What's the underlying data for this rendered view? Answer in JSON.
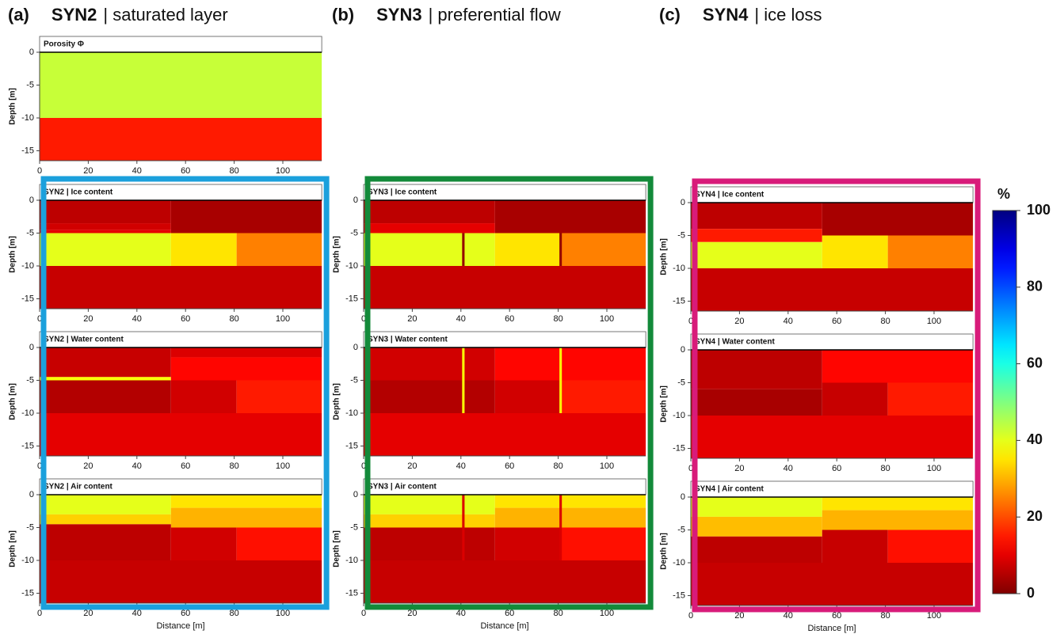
{
  "axes": {
    "xlabel": "Distance [m]",
    "ylabel": "Depth [m]",
    "xlim": [
      0,
      116
    ],
    "ylim": [
      -16.5,
      0
    ],
    "xticks": [
      0,
      20,
      40,
      60,
      80,
      100
    ],
    "yticks": [
      -15,
      -10,
      -5,
      0
    ]
  },
  "colorbar": {
    "title": "%",
    "lim": [
      0,
      100
    ],
    "ticks": [
      0,
      20,
      40,
      60,
      80,
      100
    ]
  },
  "columns": [
    {
      "label": "(a)",
      "name": "SYN2",
      "subtitle": "| saturated layer",
      "frame_color": "#1ba0dc",
      "panels": [
        {
          "title": "Porosity Φ",
          "regions": [
            {
              "x": [
                0,
                116
              ],
              "depth": [
                0,
                -10
              ],
              "value": 43
            },
            {
              "x": [
                0,
                116
              ],
              "depth": [
                -10,
                -16.5
              ],
              "value": 15
            }
          ]
        },
        {
          "title": "SYN2 | Ice content",
          "regions": [
            {
              "x": [
                0,
                54
              ],
              "depth": [
                0,
                -3.5
              ],
              "value": 6
            },
            {
              "x": [
                0,
                54
              ],
              "depth": [
                -3.5,
                -4.5
              ],
              "value": 8
            },
            {
              "x": [
                0,
                54
              ],
              "depth": [
                -4.5,
                -5
              ],
              "value": 10
            },
            {
              "x": [
                54,
                116
              ],
              "depth": [
                0,
                -5
              ],
              "value": 4
            },
            {
              "x": [
                0,
                54
              ],
              "depth": [
                -5,
                -10
              ],
              "value": 40
            },
            {
              "x": [
                54,
                81
              ],
              "depth": [
                -5,
                -10
              ],
              "value": 35
            },
            {
              "x": [
                81,
                116
              ],
              "depth": [
                -5,
                -10
              ],
              "value": 25
            },
            {
              "x": [
                0,
                116
              ],
              "depth": [
                -10,
                -16.5
              ],
              "value": 7
            }
          ]
        },
        {
          "title": "SYN2 | Water content",
          "regions": [
            {
              "x": [
                0,
                54
              ],
              "depth": [
                0,
                -4.5
              ],
              "value": 7
            },
            {
              "x": [
                0,
                54
              ],
              "depth": [
                -4.5,
                -5
              ],
              "value": 38
            },
            {
              "x": [
                0,
                54
              ],
              "depth": [
                -5,
                -10
              ],
              "value": 5
            },
            {
              "x": [
                54,
                116
              ],
              "depth": [
                0,
                -1.5
              ],
              "value": 9
            },
            {
              "x": [
                54,
                116
              ],
              "depth": [
                -1.5,
                -5
              ],
              "value": 13
            },
            {
              "x": [
                54,
                81
              ],
              "depth": [
                -5,
                -10
              ],
              "value": 8
            },
            {
              "x": [
                81,
                116
              ],
              "depth": [
                -5,
                -10
              ],
              "value": 15
            },
            {
              "x": [
                0,
                116
              ],
              "depth": [
                -10,
                -16.5
              ],
              "value": 10
            }
          ]
        },
        {
          "title": "SYN2 | Air content",
          "regions": [
            {
              "x": [
                0,
                54
              ],
              "depth": [
                0,
                -3
              ],
              "value": 40
            },
            {
              "x": [
                0,
                54
              ],
              "depth": [
                -3,
                -4.5
              ],
              "value": 33
            },
            {
              "x": [
                54,
                116
              ],
              "depth": [
                0,
                -2
              ],
              "value": 35
            },
            {
              "x": [
                54,
                116
              ],
              "depth": [
                -2,
                -5
              ],
              "value": 30
            },
            {
              "x": [
                0,
                54
              ],
              "depth": [
                -4.5,
                -10
              ],
              "value": 6
            },
            {
              "x": [
                54,
                81
              ],
              "depth": [
                -5,
                -10
              ],
              "value": 8
            },
            {
              "x": [
                81,
                116
              ],
              "depth": [
                -5,
                -10
              ],
              "value": 14
            },
            {
              "x": [
                0,
                116
              ],
              "depth": [
                -10,
                -16.5
              ],
              "value": 7
            }
          ]
        }
      ]
    },
    {
      "label": "(b)",
      "name": "SYN3",
      "subtitle": "| preferential flow",
      "frame_color": "#138a3a",
      "panels": [
        {
          "title": "SYN3 | Ice content",
          "regions": [
            {
              "x": [
                0,
                54
              ],
              "depth": [
                0,
                -3.5
              ],
              "value": 6
            },
            {
              "x": [
                0,
                54
              ],
              "depth": [
                -3.5,
                -5
              ],
              "value": 10
            },
            {
              "x": [
                54,
                116
              ],
              "depth": [
                0,
                -5
              ],
              "value": 4
            },
            {
              "x": [
                0,
                54
              ],
              "depth": [
                -5,
                -10
              ],
              "value": 40
            },
            {
              "x": [
                54,
                81
              ],
              "depth": [
                -5,
                -10
              ],
              "value": 35
            },
            {
              "x": [
                81,
                116
              ],
              "depth": [
                -5,
                -10
              ],
              "value": 25
            },
            {
              "x": [
                40.5,
                41.5
              ],
              "depth": [
                -5,
                -10
              ],
              "value": 2
            },
            {
              "x": [
                80.5,
                81.5
              ],
              "depth": [
                -5,
                -10
              ],
              "value": 2
            },
            {
              "x": [
                0,
                116
              ],
              "depth": [
                -10,
                -16.5
              ],
              "value": 7
            }
          ]
        },
        {
          "title": "SYN3 | Water content",
          "regions": [
            {
              "x": [
                0,
                54
              ],
              "depth": [
                0,
                -5
              ],
              "value": 8
            },
            {
              "x": [
                0,
                54
              ],
              "depth": [
                -5,
                -10
              ],
              "value": 5
            },
            {
              "x": [
                54,
                116
              ],
              "depth": [
                0,
                -5
              ],
              "value": 13
            },
            {
              "x": [
                54,
                81
              ],
              "depth": [
                -5,
                -10
              ],
              "value": 8
            },
            {
              "x": [
                81,
                116
              ],
              "depth": [
                -5,
                -10
              ],
              "value": 15
            },
            {
              "x": [
                40.5,
                41.5
              ],
              "depth": [
                0,
                -10
              ],
              "value": 38
            },
            {
              "x": [
                80.5,
                81.5
              ],
              "depth": [
                0,
                -10
              ],
              "value": 38
            },
            {
              "x": [
                0,
                116
              ],
              "depth": [
                -10,
                -16.5
              ],
              "value": 10
            }
          ]
        },
        {
          "title": "SYN3 | Air content",
          "regions": [
            {
              "x": [
                0,
                54
              ],
              "depth": [
                0,
                -3
              ],
              "value": 40
            },
            {
              "x": [
                0,
                54
              ],
              "depth": [
                -3,
                -5
              ],
              "value": 33
            },
            {
              "x": [
                54,
                116
              ],
              "depth": [
                0,
                -2
              ],
              "value": 35
            },
            {
              "x": [
                54,
                116
              ],
              "depth": [
                -2,
                -5
              ],
              "value": 30
            },
            {
              "x": [
                0,
                54
              ],
              "depth": [
                -5,
                -10
              ],
              "value": 6
            },
            {
              "x": [
                54,
                81
              ],
              "depth": [
                -5,
                -10
              ],
              "value": 8
            },
            {
              "x": [
                81,
                116
              ],
              "depth": [
                -5,
                -10
              ],
              "value": 14
            },
            {
              "x": [
                40.5,
                41.5
              ],
              "depth": [
                0,
                -10
              ],
              "value": 9
            },
            {
              "x": [
                80.5,
                81.5
              ],
              "depth": [
                0,
                -10
              ],
              "value": 9
            },
            {
              "x": [
                0,
                116
              ],
              "depth": [
                -10,
                -16.5
              ],
              "value": 7
            }
          ]
        }
      ]
    },
    {
      "label": "(c)",
      "name": "SYN4",
      "subtitle": "| ice loss",
      "frame_color": "#d81b7a",
      "panels": [
        {
          "title": "SYN4 | Ice content",
          "regions": [
            {
              "x": [
                0,
                54
              ],
              "depth": [
                0,
                -4
              ],
              "value": 6
            },
            {
              "x": [
                0,
                54
              ],
              "depth": [
                -4,
                -6
              ],
              "value": 15
            },
            {
              "x": [
                54,
                116
              ],
              "depth": [
                0,
                -5
              ],
              "value": 4
            },
            {
              "x": [
                0,
                54
              ],
              "depth": [
                -6,
                -10
              ],
              "value": 40
            },
            {
              "x": [
                54,
                81
              ],
              "depth": [
                -5,
                -10
              ],
              "value": 35
            },
            {
              "x": [
                81,
                116
              ],
              "depth": [
                -5,
                -10
              ],
              "value": 25
            },
            {
              "x": [
                0,
                116
              ],
              "depth": [
                -10,
                -16.5
              ],
              "value": 7
            }
          ]
        },
        {
          "title": "SYN4 | Water content",
          "regions": [
            {
              "x": [
                0,
                54
              ],
              "depth": [
                0,
                -6
              ],
              "value": 6
            },
            {
              "x": [
                0,
                54
              ],
              "depth": [
                -6,
                -10
              ],
              "value": 4
            },
            {
              "x": [
                54,
                116
              ],
              "depth": [
                0,
                -5
              ],
              "value": 13
            },
            {
              "x": [
                54,
                81
              ],
              "depth": [
                -5,
                -10
              ],
              "value": 7
            },
            {
              "x": [
                81,
                116
              ],
              "depth": [
                -5,
                -10
              ],
              "value": 15
            },
            {
              "x": [
                0,
                116
              ],
              "depth": [
                -10,
                -16.5
              ],
              "value": 10
            }
          ]
        },
        {
          "title": "SYN4 | Air content",
          "regions": [
            {
              "x": [
                0,
                54
              ],
              "depth": [
                0,
                -3
              ],
              "value": 40
            },
            {
              "x": [
                0,
                54
              ],
              "depth": [
                -3,
                -6
              ],
              "value": 31
            },
            {
              "x": [
                54,
                116
              ],
              "depth": [
                0,
                -2
              ],
              "value": 35
            },
            {
              "x": [
                54,
                116
              ],
              "depth": [
                -2,
                -5
              ],
              "value": 30
            },
            {
              "x": [
                0,
                54
              ],
              "depth": [
                -6,
                -10
              ],
              "value": 6
            },
            {
              "x": [
                54,
                81
              ],
              "depth": [
                -5,
                -10
              ],
              "value": 7
            },
            {
              "x": [
                81,
                116
              ],
              "depth": [
                -5,
                -10
              ],
              "value": 14
            },
            {
              "x": [
                0,
                116
              ],
              "depth": [
                -10,
                -16.5
              ],
              "value": 7
            }
          ]
        }
      ]
    }
  ]
}
